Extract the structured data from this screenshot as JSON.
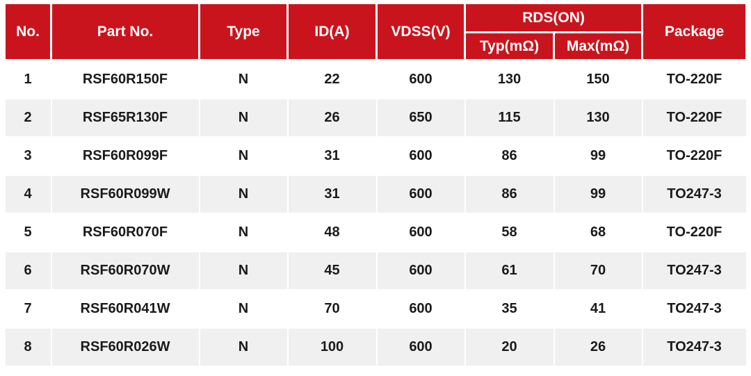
{
  "header": {
    "no": "No.",
    "part_no": "Part No.",
    "type": "Type",
    "id_a": "ID(A)",
    "vdss": "VDSS(V)",
    "rds_on": {
      "label": "RDS(ON)",
      "typ": "Typ(mΩ)",
      "max": "Max(mΩ)"
    },
    "package": "Package"
  },
  "rows": [
    {
      "no": "1",
      "part_no": "RSF60R150F",
      "type": "N",
      "id_a": "22",
      "vdss": "600",
      "rds_typ": "130",
      "rds_max": "150",
      "package": "TO-220F"
    },
    {
      "no": "2",
      "part_no": "RSF65R130F",
      "type": "N",
      "id_a": "26",
      "vdss": "650",
      "rds_typ": "115",
      "rds_max": "130",
      "package": "TO-220F"
    },
    {
      "no": "3",
      "part_no": "RSF60R099F",
      "type": "N",
      "id_a": "31",
      "vdss": "600",
      "rds_typ": "86",
      "rds_max": "99",
      "package": "TO-220F"
    },
    {
      "no": "4",
      "part_no": "RSF60R099W",
      "type": "N",
      "id_a": "31",
      "vdss": "600",
      "rds_typ": "86",
      "rds_max": "99",
      "package": "TO247-3"
    },
    {
      "no": "5",
      "part_no": "RSF60R070F",
      "type": "N",
      "id_a": "48",
      "vdss": "600",
      "rds_typ": "58",
      "rds_max": "68",
      "package": "TO-220F"
    },
    {
      "no": "6",
      "part_no": "RSF60R070W",
      "type": "N",
      "id_a": "45",
      "vdss": "600",
      "rds_typ": "61",
      "rds_max": "70",
      "package": "TO247-3"
    },
    {
      "no": "7",
      "part_no": "RSF60R041W",
      "type": "N",
      "id_a": "70",
      "vdss": "600",
      "rds_typ": "35",
      "rds_max": "41",
      "package": "TO247-3"
    },
    {
      "no": "8",
      "part_no": "RSF60R026W",
      "type": "N",
      "id_a": "100",
      "vdss": "600",
      "rds_typ": "20",
      "rds_max": "26",
      "package": "TO247-3"
    }
  ],
  "colors": {
    "header_bg": "#CA141D",
    "header_text": "#FFFFFF",
    "row_bg": "#FFFFFF",
    "row_alt_bg": "#F0F0F0",
    "body_text": "#1A1A1A",
    "divider": "#FFFFFF"
  },
  "chart_data": {
    "type": "table",
    "columns": [
      "No.",
      "Part No.",
      "Type",
      "ID(A)",
      "VDSS(V)",
      "RDS(ON) Typ(mΩ)",
      "RDS(ON) Max(mΩ)",
      "Package"
    ],
    "rows": [
      [
        "1",
        "RSF60R150F",
        "N",
        22,
        600,
        130,
        150,
        "TO-220F"
      ],
      [
        "2",
        "RSF65R130F",
        "N",
        26,
        650,
        115,
        130,
        "TO-220F"
      ],
      [
        "3",
        "RSF60R099F",
        "N",
        31,
        600,
        86,
        99,
        "TO-220F"
      ],
      [
        "4",
        "RSF60R099W",
        "N",
        31,
        600,
        86,
        99,
        "TO247-3"
      ],
      [
        "5",
        "RSF60R070F",
        "N",
        48,
        600,
        58,
        68,
        "TO-220F"
      ],
      [
        "6",
        "RSF60R070W",
        "N",
        45,
        600,
        61,
        70,
        "TO247-3"
      ],
      [
        "7",
        "RSF60R041W",
        "N",
        70,
        600,
        35,
        41,
        "TO247-3"
      ],
      [
        "8",
        "RSF60R026W",
        "N",
        100,
        600,
        20,
        26,
        "TO247-3"
      ]
    ]
  }
}
